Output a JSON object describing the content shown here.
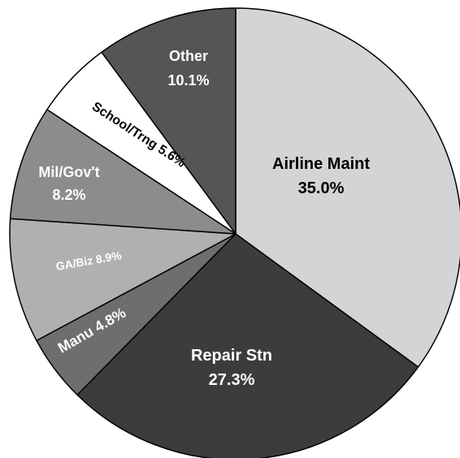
{
  "chart_data": {
    "type": "pie",
    "title": "",
    "start_angle_deg": 0,
    "direction": "clockwise",
    "slices": [
      {
        "label": "Airline Maint",
        "pct_text": "35.0%",
        "value": 35.0,
        "color": "#d4d4d4",
        "text_color": "#000000"
      },
      {
        "label": "Repair Stn",
        "pct_text": "27.3%",
        "value": 27.3,
        "color": "#3c3c3c",
        "text_color": "#ffffff"
      },
      {
        "label": "Manu",
        "pct_text": "4.8%",
        "value": 4.8,
        "color": "#6e6e6e",
        "text_color": "#ffffff"
      },
      {
        "label": "GA/Biz",
        "pct_text": "8.9%",
        "value": 8.9,
        "color": "#b0b0b0",
        "text_color": "#ffffff"
      },
      {
        "label": "Mil/Gov't",
        "pct_text": "8.2%",
        "value": 8.2,
        "color": "#8c8c8c",
        "text_color": "#ffffff"
      },
      {
        "label": "School/Trng",
        "pct_text": "5.6%",
        "value": 5.6,
        "color": "#ffffff",
        "text_color": "#000000"
      },
      {
        "label": "Other",
        "pct_text": "10.1%",
        "value": 10.1,
        "color": "#555555",
        "text_color": "#ffffff"
      }
    ]
  }
}
